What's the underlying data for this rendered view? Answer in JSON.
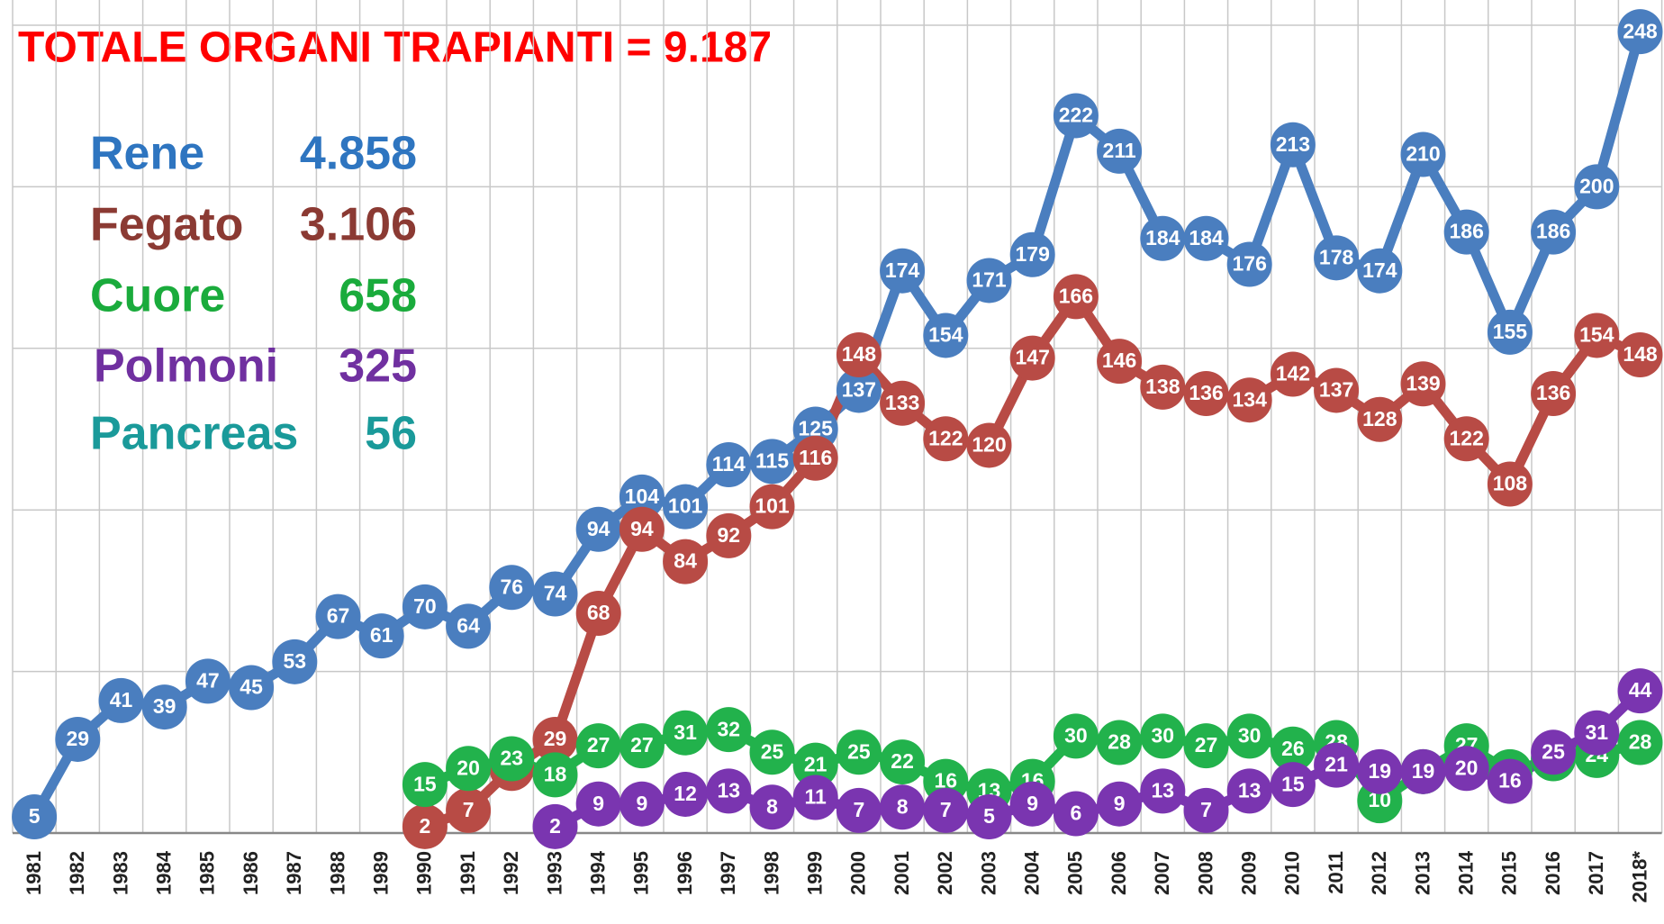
{
  "chart_data": {
    "type": "line",
    "title": "TOTALE ORGANI TRAPIANTI = 9.187",
    "categories": [
      "1981",
      "1982",
      "1983",
      "1984",
      "1985",
      "1986",
      "1987",
      "1988",
      "1989",
      "1990",
      "1991",
      "1992",
      "1993",
      "1994",
      "1995",
      "1996",
      "1997",
      "1998",
      "1999",
      "2000",
      "2001",
      "2002",
      "2003",
      "2004",
      "2005",
      "2006",
      "2007",
      "2008",
      "2009",
      "2010",
      "2011",
      "2012",
      "2013",
      "2014",
      "2015",
      "2016",
      "2017",
      "2018*"
    ],
    "series": [
      {
        "name": "Rene",
        "color": "#4a7ebf",
        "legend_color": "#2e75c0",
        "total": {
          "value": 4858,
          "label": "4.858"
        },
        "values": [
          5,
          29,
          41,
          39,
          47,
          45,
          53,
          67,
          61,
          70,
          64,
          76,
          74,
          94,
          104,
          101,
          114,
          115,
          125,
          137,
          174,
          154,
          171,
          179,
          222,
          211,
          184,
          184,
          176,
          213,
          178,
          174,
          210,
          186,
          155,
          186,
          200,
          248
        ]
      },
      {
        "name": "Fegato",
        "color": "#b84b45",
        "legend_color": "#8b3a33",
        "total": {
          "value": 3106,
          "label": "3.106"
        },
        "values": [
          null,
          null,
          null,
          null,
          null,
          null,
          null,
          null,
          null,
          2,
          7,
          20,
          29,
          68,
          94,
          84,
          92,
          101,
          116,
          148,
          133,
          122,
          120,
          147,
          166,
          146,
          138,
          136,
          134,
          142,
          137,
          128,
          139,
          122,
          108,
          136,
          154,
          148
        ]
      },
      {
        "name": "Cuore",
        "color": "#22b24c",
        "legend_color": "#1aab3c",
        "total": {
          "value": 658,
          "label": "658"
        },
        "values": [
          null,
          null,
          null,
          null,
          null,
          null,
          null,
          null,
          null,
          15,
          20,
          23,
          18,
          27,
          27,
          31,
          32,
          25,
          21,
          25,
          22,
          16,
          13,
          16,
          30,
          28,
          30,
          27,
          30,
          26,
          28,
          10,
          19,
          27,
          19,
          23,
          24,
          28
        ]
      },
      {
        "name": "Polmoni",
        "color": "#7a35b0",
        "legend_color": "#7030a0",
        "total": {
          "value": 325,
          "label": "325"
        },
        "values": [
          null,
          null,
          null,
          null,
          null,
          null,
          null,
          null,
          null,
          null,
          null,
          null,
          2,
          9,
          9,
          12,
          13,
          8,
          11,
          7,
          8,
          7,
          5,
          9,
          6,
          9,
          13,
          7,
          13,
          15,
          21,
          19,
          19,
          20,
          16,
          25,
          31,
          44
        ]
      },
      {
        "name": "Pancreas",
        "color": "#1a9a9a",
        "legend_color": "#1a9a9a",
        "total": {
          "value": 56,
          "label": "56"
        }
      }
    ],
    "ylim": [
      0,
      250
    ],
    "yticks": [
      0,
      50,
      100,
      150,
      200,
      250
    ],
    "grid": true
  }
}
